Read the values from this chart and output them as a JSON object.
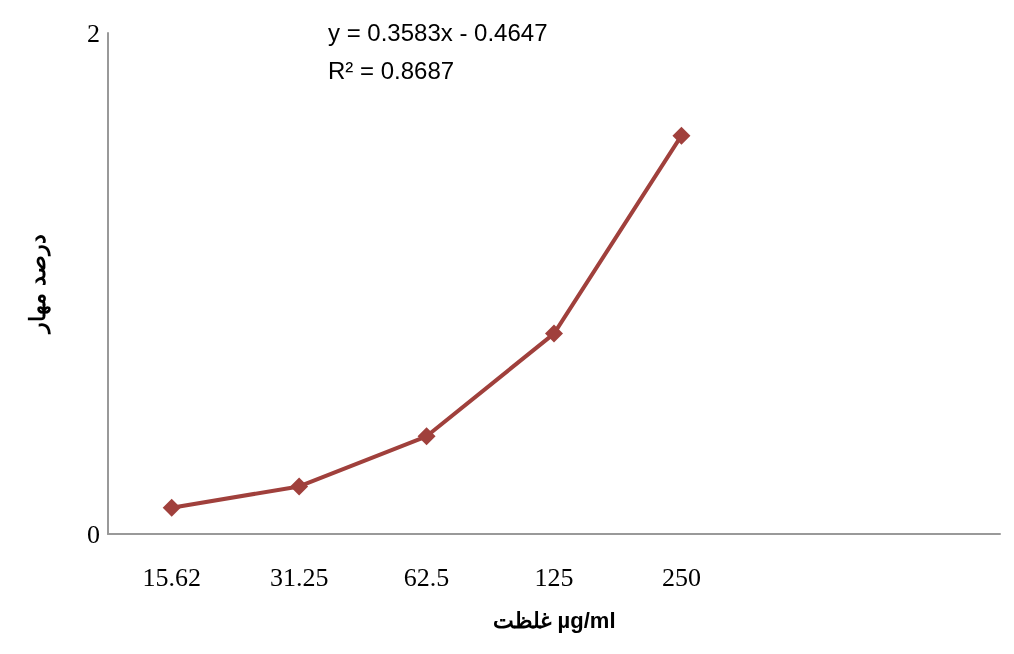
{
  "chart_data": {
    "type": "line",
    "xlabel": "غلظت µg/ml",
    "ylabel": "درصد مهار",
    "annotations": [
      "y = 0.3583x - 0.4647",
      "R² = 0.8687"
    ],
    "categories": [
      "15.62",
      "31.25",
      "62.5",
      "125",
      "250",
      null,
      null
    ],
    "series": [
      {
        "color": "#a0403c",
        "values": [
          0.105,
          0.19,
          0.39,
          0.8,
          1.59,
          null,
          null
        ]
      }
    ],
    "ylim": [
      0,
      2
    ],
    "yticks": [
      0,
      2
    ],
    "grid": false,
    "marker": "diamond",
    "line_style": "solid"
  }
}
